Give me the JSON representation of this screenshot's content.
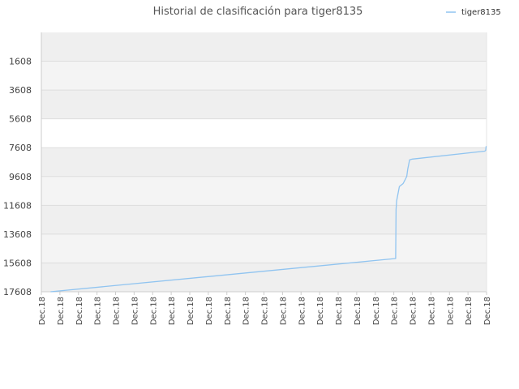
{
  "chart_data": {
    "type": "line",
    "title": "Historial de clasificación para tiger8135",
    "xlabel": "",
    "ylabel": "",
    "legend": {
      "position": "top-right",
      "entries": [
        "tiger8135"
      ]
    },
    "y_inverted": true,
    "ylim": [
      17608,
      -392
    ],
    "y_ticks": [
      1608,
      3608,
      5608,
      7608,
      9608,
      11608,
      13608,
      15608,
      17608
    ],
    "x_tick_labels": [
      "Dec.18",
      "Dec.18",
      "Dec.18",
      "Dec.18",
      "Dec.18",
      "Dec.18",
      "Dec.18",
      "Dec.18",
      "Dec.18",
      "Dec.18",
      "Dec.18",
      "Dec.18",
      "Dec.18",
      "Dec.18",
      "Dec.18",
      "Dec.18",
      "Dec.18",
      "Dec.18",
      "Dec.18",
      "Dec.18",
      "Dec.18",
      "Dec.18",
      "Dec.18",
      "Dec.18",
      "Dec.18"
    ],
    "grid": true,
    "series": [
      {
        "name": "tiger8135",
        "color": "#90c4f0",
        "x": [
          0.5,
          19.1,
          19.12,
          19.15,
          19.3,
          19.5,
          19.6,
          19.7,
          19.75,
          19.85,
          20.0,
          23.9,
          23.95,
          23.98
        ],
        "y": [
          17608,
          15300,
          11900,
          11300,
          10300,
          10100,
          9850,
          9600,
          9100,
          8450,
          8400,
          7850,
          7800,
          7500
        ]
      }
    ]
  }
}
